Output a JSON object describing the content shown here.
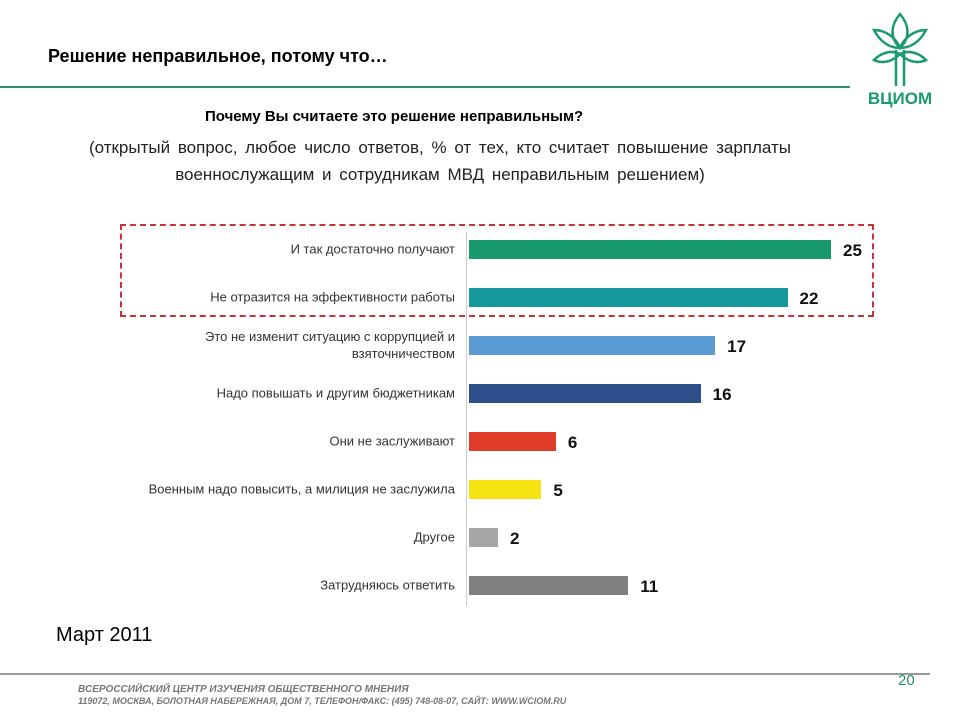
{
  "header": {
    "title": "Решение неправильное, потому что…",
    "logo": "ВЦИОМ"
  },
  "chart_data": {
    "type": "bar",
    "orientation": "horizontal",
    "title": "Почему Вы считаете это решение неправильным?",
    "subtitle": "(открытый вопрос, любое число ответов, % от тех, кто считает повышение зарплаты военнослужащим и сотрудникам МВД неправильным решением)",
    "categories": [
      "И так достаточно получают",
      "Не отразится на эффективности работы",
      "Это не изменит ситуацию с коррупцией и взяточничеством",
      "Надо повышать и другим бюджетникам",
      "Они не заслуживают",
      "Военным надо повысить, а милиция не заслужила",
      "Другое",
      "Затрудняюсь ответить"
    ],
    "values": [
      25,
      22,
      17,
      16,
      6,
      5,
      2,
      11
    ],
    "colors": [
      "#17986c",
      "#16979b",
      "#5b9bd5",
      "#2c4f8c",
      "#e03c2a",
      "#f7e312",
      "#a6a6a6",
      "#808080"
    ]
  },
  "date": "Март 2011",
  "footer": {
    "line1": "ВСЕРОССИЙСКИЙ ЦЕНТР ИЗУЧЕНИЯ ОБЩЕСТВЕННОГО МНЕНИЯ",
    "line2": "119072, МОСКВА, БОЛОТНАЯ НАБЕРЕЖНАЯ, ДОМ 7, ТЕЛЕФОН/ФАКС: (495) 748-08-07, САЙТ: WWW.WCIOM.RU",
    "page": "20"
  }
}
